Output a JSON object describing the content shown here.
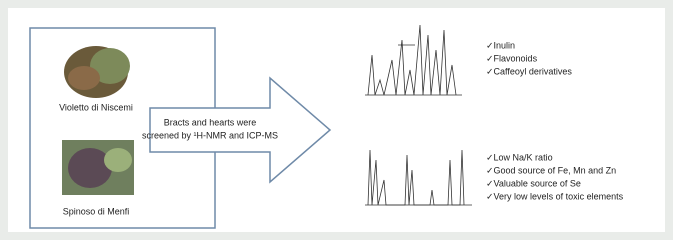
{
  "samples": [
    {
      "label": "Violetto di Niscemi"
    },
    {
      "label": "Spinoso di Menfi"
    }
  ],
  "arrow": {
    "lines": [
      "Bracts and hearts were",
      "screened by ¹H-NMR and ICP-MS"
    ]
  },
  "nmr_findings": [
    "✓Inulin",
    "✓Flavonoids",
    "✓Caffeoyl derivatives"
  ],
  "icp_findings": [
    "✓Low Na/K ratio",
    "✓Good source of Fe, Mn and Zn",
    "✓Valuable source of Se",
    "✓Very low levels of toxic elements"
  ]
}
